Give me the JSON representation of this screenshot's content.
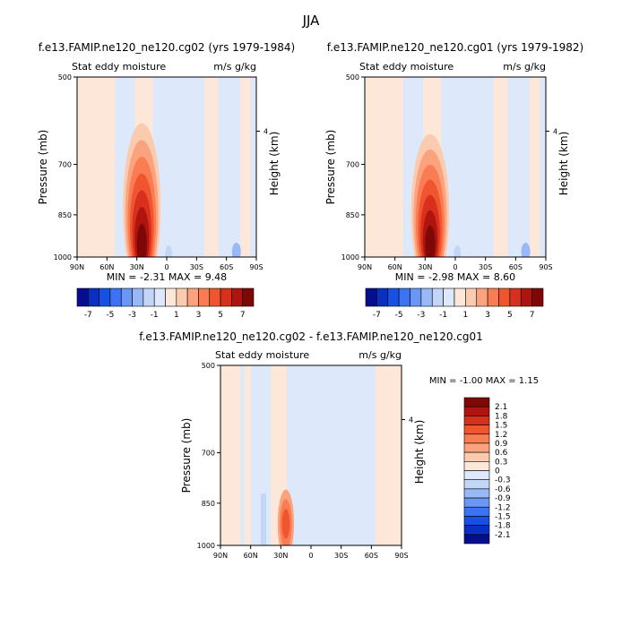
{
  "title": "JJA",
  "units_label": "m/s g/kg",
  "field_label": "Stat eddy moisture",
  "chart_data": [
    {
      "type": "heatmap",
      "title": "f.e13.FAMIP.ne120_ne120.cg02 (yrs 1979-1984)",
      "subtitle_left": "Stat eddy moisture",
      "subtitle_right": "m/s g/kg",
      "xlabel": "",
      "ylabel": "Pressure (mb)",
      "ylabel_right": "Height (km)",
      "x_ticks": [
        "90N",
        "60N",
        "30N",
        "0",
        "30S",
        "60S",
        "90S"
      ],
      "y_ticks": [
        "500",
        "700",
        "850",
        "1000"
      ],
      "y_ticks_right": [
        "4"
      ],
      "min_label": "MIN = -2.31",
      "max_label": "MAX = 9.48",
      "min": -2.31,
      "max": 9.48,
      "colorbar_ticks": [
        "-7",
        "-5",
        "-3",
        "-1",
        "1",
        "3",
        "5",
        "7"
      ],
      "peak": {
        "lat": 25,
        "pressure": 950,
        "value": 9.48
      }
    },
    {
      "type": "heatmap",
      "title": "f.e13.FAMIP.ne120_ne120.cg01 (yrs 1979-1982)",
      "subtitle_left": "Stat eddy moisture",
      "subtitle_right": "m/s g/kg",
      "xlabel": "",
      "ylabel": "Pressure (mb)",
      "ylabel_right": "Height (km)",
      "x_ticks": [
        "90N",
        "60N",
        "30N",
        "0",
        "30S",
        "60S",
        "90S"
      ],
      "y_ticks": [
        "500",
        "700",
        "850",
        "1000"
      ],
      "y_ticks_right": [
        "4"
      ],
      "min_label": "MIN = -2.98",
      "max_label": "MAX = 8.60",
      "min": -2.98,
      "max": 8.6,
      "colorbar_ticks": [
        "-7",
        "-5",
        "-3",
        "-1",
        "1",
        "3",
        "5",
        "7"
      ],
      "peak": {
        "lat": 25,
        "pressure": 950,
        "value": 8.6
      }
    },
    {
      "type": "heatmap",
      "title": "f.e13.FAMIP.ne120_ne120.cg02 - f.e13.FAMIP.ne120_ne120.cg01",
      "subtitle_left": "Stat eddy moisture",
      "subtitle_right": "m/s g/kg",
      "xlabel": "",
      "ylabel": "Pressure (mb)",
      "ylabel_right": "Height (km)",
      "x_ticks": [
        "90N",
        "60N",
        "30N",
        "0",
        "30S",
        "60S",
        "90S"
      ],
      "y_ticks": [
        "500",
        "700",
        "850",
        "1000"
      ],
      "y_ticks_right": [
        "4"
      ],
      "min_label": "MIN =  -1.00",
      "max_label": "MAX =    1.15",
      "min": -1.0,
      "max": 1.15,
      "colorbar_ticks": [
        "2.1",
        "1.8",
        "1.5",
        "1.2",
        "0.9",
        "0.6",
        "0.3",
        "0",
        "-0.3",
        "-0.6",
        "-0.9",
        "-1.2",
        "-1.5",
        "-1.8",
        "-2.1"
      ],
      "peak": {
        "lat": 25,
        "pressure": 930,
        "value": 1.15
      }
    }
  ],
  "colors": {
    "diverging_16": [
      "#050e8c",
      "#0a2fc1",
      "#1750e6",
      "#3c72f4",
      "#6a97f5",
      "#98b8f6",
      "#c3d6f7",
      "#dde9fa",
      "#fde7d8",
      "#fbcbb0",
      "#fba37e",
      "#f97c52",
      "#f0552f",
      "#d8301d",
      "#b01410",
      "#7d0806"
    ],
    "diff_16": [
      "#050e8c",
      "#0a2fc1",
      "#1750e6",
      "#3c72f4",
      "#6a97f5",
      "#98b8f6",
      "#c3d6f7",
      "#dde9fa",
      "#fde7d8",
      "#fbcbb0",
      "#fba37e",
      "#f97c52",
      "#f0552f",
      "#d8301d",
      "#b01410",
      "#7d0806"
    ]
  }
}
